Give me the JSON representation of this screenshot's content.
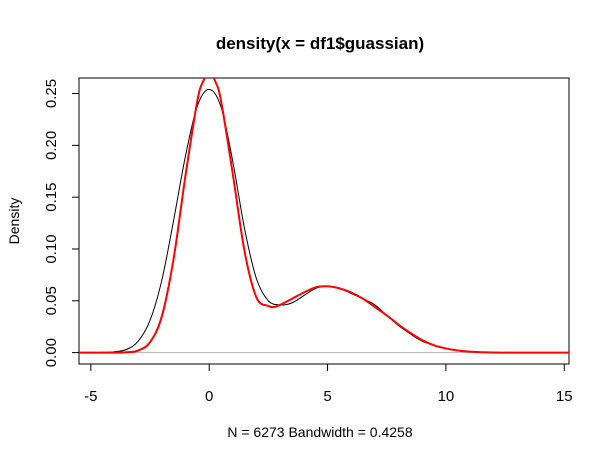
{
  "chart_data": {
    "type": "line",
    "title": "density(x = df1$guassian)",
    "xlabel": "N = 6273   Bandwidth = 0.4258",
    "ylabel": "Density",
    "xlim": [
      -5.5,
      15.2
    ],
    "ylim": [
      -0.011,
      0.265
    ],
    "x_ticks": [
      -5,
      0,
      5,
      10,
      15
    ],
    "x_tick_labels": [
      "-5",
      "0",
      "5",
      "10",
      "15"
    ],
    "y_ticks": [
      0.0,
      0.05,
      0.1,
      0.15,
      0.2,
      0.25
    ],
    "y_tick_labels": [
      "0.00",
      "0.05",
      "0.10",
      "0.15",
      "0.20",
      "0.25"
    ],
    "grid": false,
    "baseline": 0,
    "series": [
      {
        "color": "#000000",
        "line_width": 1,
        "x": [
          -5.5,
          -4.5,
          -4,
          -3.5,
          -3,
          -2.5,
          -2,
          -1.5,
          -1,
          -0.5,
          0,
          0.5,
          1,
          1.5,
          2,
          2.5,
          3,
          3.5,
          4,
          4.5,
          5,
          5.5,
          6,
          6.5,
          7,
          7.5,
          8,
          8.5,
          9,
          9.5,
          10,
          10.5,
          11,
          12,
          13,
          15.2
        ],
        "y": [
          0,
          0.0002,
          0.0008,
          0.003,
          0.011,
          0.031,
          0.07,
          0.128,
          0.19,
          0.238,
          0.254,
          0.237,
          0.184,
          0.119,
          0.071,
          0.05,
          0.046,
          0.048,
          0.055,
          0.062,
          0.064,
          0.062,
          0.057,
          0.052,
          0.046,
          0.036,
          0.026,
          0.018,
          0.011,
          0.007,
          0.004,
          0.002,
          0.001,
          0.0002,
          0,
          0
        ]
      },
      {
        "color": "#ff0000",
        "line_width": 2,
        "x": [
          -5.5,
          -4,
          -3.5,
          -3,
          -2.5,
          -2,
          -1.5,
          -1,
          -0.5,
          -0.25,
          0,
          0.25,
          0.5,
          1,
          1.5,
          2,
          2.5,
          2.75,
          3,
          3.5,
          4,
          4.5,
          5,
          5.5,
          6,
          6.5,
          7,
          7.5,
          8,
          8.5,
          9,
          9.5,
          10,
          10.5,
          11,
          12,
          13,
          15.2
        ],
        "y": [
          0,
          0,
          0.0003,
          0.002,
          0.01,
          0.035,
          0.091,
          0.171,
          0.243,
          0.262,
          0.27,
          0.262,
          0.243,
          0.172,
          0.097,
          0.053,
          0.045,
          0.044,
          0.046,
          0.052,
          0.058,
          0.063,
          0.064,
          0.062,
          0.058,
          0.052,
          0.044,
          0.036,
          0.027,
          0.019,
          0.012,
          0.007,
          0.004,
          0.002,
          0.001,
          0.0001,
          0,
          0
        ]
      }
    ]
  }
}
